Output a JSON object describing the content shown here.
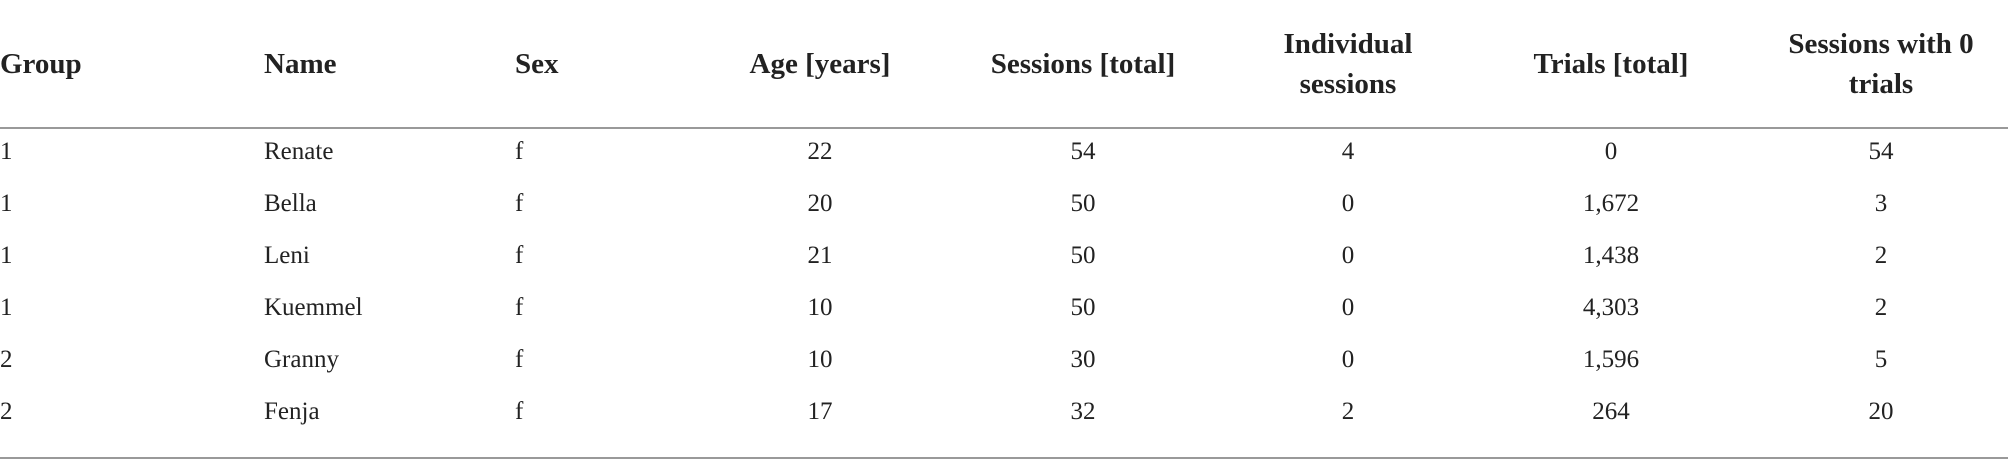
{
  "table": {
    "header": [
      "Group",
      "Name",
      "Sex",
      "Age [years]",
      "Sessions [total]",
      "Individual sessions",
      "Trials [total]",
      "Sessions with 0 trials"
    ],
    "rows": [
      [
        "1",
        "Renate",
        "f",
        "22",
        "54",
        "4",
        "0",
        "54"
      ],
      [
        "1",
        "Bella",
        "f",
        "20",
        "50",
        "0",
        "1,672",
        "3"
      ],
      [
        "1",
        "Leni",
        "f",
        "21",
        "50",
        "0",
        "1,438",
        "2"
      ],
      [
        "1",
        "Kuemmel",
        "f",
        "10",
        "50",
        "0",
        "4,303",
        "2"
      ],
      [
        "2",
        "Granny",
        "f",
        "10",
        "30",
        "0",
        "1,596",
        "5"
      ],
      [
        "2",
        "Fenja",
        "f",
        "17",
        "32",
        "2",
        "264",
        "20"
      ]
    ]
  }
}
